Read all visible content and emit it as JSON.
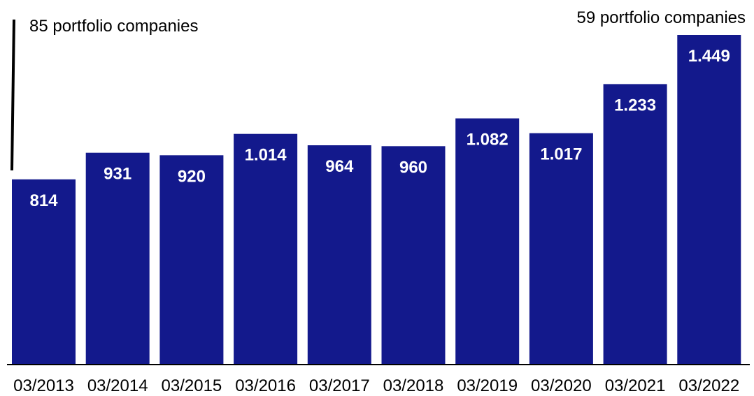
{
  "annotations": {
    "left": "85 portfolio companies",
    "right": "59 portfolio companies"
  },
  "colors": {
    "bar": "#13198c",
    "axis": "#000000",
    "value_label": "#ffffff"
  },
  "chart_data": {
    "type": "bar",
    "categories": [
      "03/2013",
      "03/2014",
      "03/2015",
      "03/2016",
      "03/2017",
      "03/2018",
      "03/2019",
      "03/2020",
      "03/2021",
      "03/2022"
    ],
    "values": [
      814,
      931,
      920,
      1014,
      964,
      960,
      1082,
      1017,
      1233,
      1449
    ],
    "value_labels": [
      "814",
      "931",
      "920",
      "1.014",
      "964",
      "960",
      "1.082",
      "1.017",
      "1.233",
      "1.449"
    ],
    "title": "",
    "xlabel": "",
    "ylabel": "",
    "ylim": [
      0,
      1512
    ],
    "grid": false,
    "legend": "none"
  }
}
